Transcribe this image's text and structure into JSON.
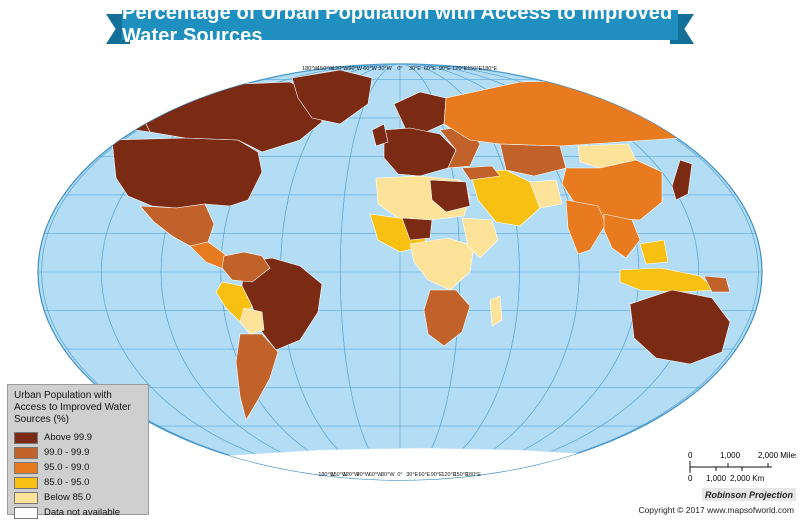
{
  "title": "Percentage of Urban Population with Access to Improved Water Sources",
  "graticule": {
    "top_labels": [
      "180°W",
      "150°W",
      "120°W",
      "90°W",
      "60°W",
      "30°W",
      "0°",
      "30°E",
      "60°E",
      "90°E",
      "120°E",
      "150°E",
      "180°E"
    ],
    "bottom_labels": [
      "180°W",
      "150°W",
      "120°W",
      "90°W",
      "60°W",
      "30°W",
      "0°",
      "30°E",
      "60°E",
      "90°E",
      "120°E",
      "150°E",
      "180°E"
    ]
  },
  "legend": {
    "title": "Urban Population with Access to Improved Water Sources (%)",
    "items": [
      {
        "label": "Above 99.9",
        "color": "#7b2b14"
      },
      {
        "label": "99.0 - 99.9",
        "color": "#c0622a"
      },
      {
        "label": "95.0 - 99.0",
        "color": "#e87a20"
      },
      {
        "label": "85.0 - 95.0",
        "color": "#f8c012"
      },
      {
        "label": "Below 85.0",
        "color": "#fde29a"
      },
      {
        "label": "Data not available",
        "color": "#ffffff"
      }
    ]
  },
  "scale_bar": {
    "miles_labels": [
      "0",
      "1,000",
      "2,000 Miles"
    ],
    "km_labels": [
      "0",
      "1,000",
      "2,000 Km"
    ]
  },
  "projection": "Robinson Projection",
  "copyright": "Copyright © 2017 www.mapsofworld.com",
  "colors": {
    "ocean": "#b3dcf5",
    "graticule": "#5aa6d6",
    "title_banner": "#1f8fbf"
  }
}
